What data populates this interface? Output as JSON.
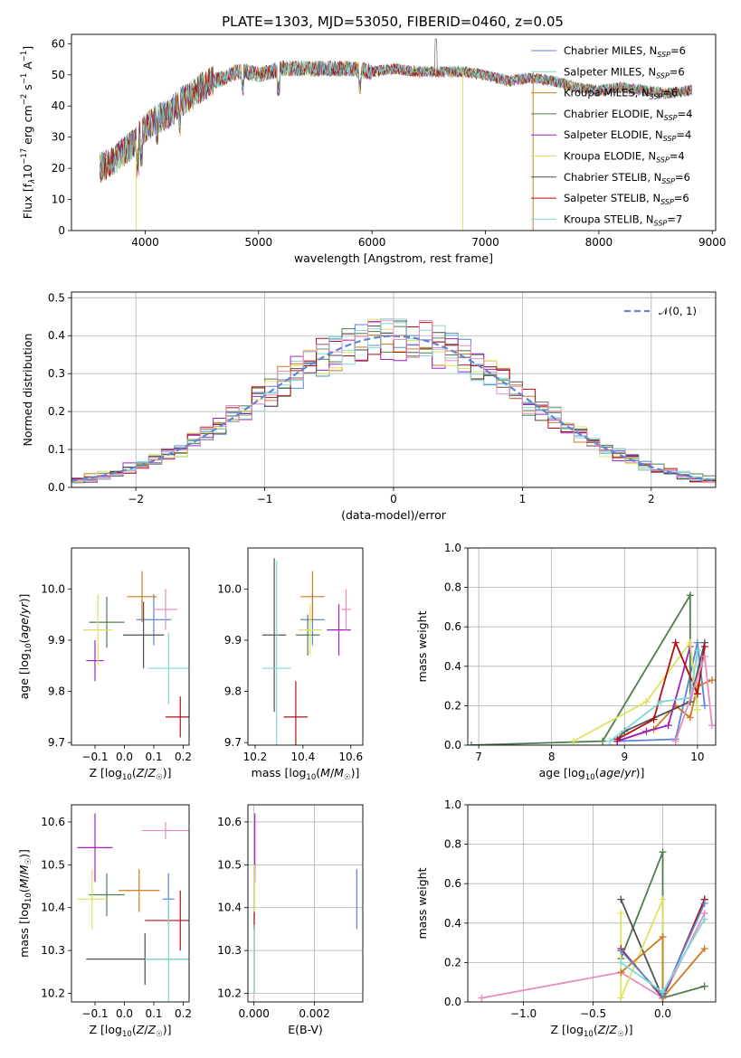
{
  "figure_title": "PLATE=1303, MJD=53050, FIBERID=0460, z=0.05",
  "colors": {
    "chabrier_miles": "#5c85d6",
    "salpeter_miles": "#8dd3c7",
    "kroupa_miles": "#cc7a1f",
    "chabrier_elodie": "#4f7d4f",
    "salpeter_elodie": "#a020c0",
    "kroupa_elodie": "#e0e060",
    "chabrier_stelib": "#505050",
    "salpeter_stelib": "#b01010",
    "kroupa_stelib": "#80d8d8",
    "extra_pink": "#e88bc0",
    "normal_curve": "#5c85d6"
  },
  "chart_data": [
    {
      "id": "spectrum",
      "type": "line",
      "xlabel": "wavelength [Angstrom, rest frame]",
      "ylabel": "Flux [f_λ10^-17 erg cm^-2 s^-1 A^-1]",
      "xlim": [
        3350,
        9030
      ],
      "ylim": [
        0,
        63
      ],
      "xticks": [
        "4000",
        "5000",
        "6000",
        "7000",
        "8000",
        "9000"
      ],
      "yticks": [
        "0",
        "10",
        "20",
        "30",
        "40",
        "50",
        "60"
      ],
      "legend_position": "upper-right",
      "legend": [
        {
          "name": "Chabrier MILES, N_SSP=6",
          "color": "#5c85d6"
        },
        {
          "name": "Salpeter MILES, N_SSP=6",
          "color": "#8dd3c7"
        },
        {
          "name": "Kroupa MILES, N_SSP=6",
          "color": "#cc7a1f"
        },
        {
          "name": "Chabrier ELODIE, N_SSP=4",
          "color": "#4f7d4f"
        },
        {
          "name": "Salpeter ELODIE, N_SSP=4",
          "color": "#a020c0"
        },
        {
          "name": "Kroupa ELODIE, N_SSP=4",
          "color": "#e0e060"
        },
        {
          "name": "Chabrier STELIB, N_SSP=6",
          "color": "#505050"
        },
        {
          "name": "Salpeter STELIB, N_SSP=6",
          "color": "#b01010"
        },
        {
          "name": "Kroupa STELIB, N_SSP=7",
          "color": "#80d8d8"
        }
      ],
      "continuum": {
        "x": [
          3600,
          3700,
          3800,
          3900,
          4000,
          4100,
          4200,
          4300,
          4400,
          4500,
          4600,
          4700,
          4800,
          4900,
          5000,
          5200,
          5400,
          5600,
          5800,
          6000,
          6200,
          6400,
          6600,
          6800,
          7000,
          7200,
          7400,
          7600,
          7800,
          8000,
          8200,
          8400,
          8600,
          8800
        ],
        "y": [
          20,
          22,
          25,
          28,
          33,
          36,
          37,
          41,
          43,
          46,
          48,
          49,
          51,
          51,
          50,
          52,
          52,
          52,
          52,
          51,
          52,
          51,
          51,
          51,
          50,
          48,
          49,
          48,
          46,
          45,
          46,
          45,
          44,
          45
        ]
      }
    },
    {
      "id": "residuals",
      "type": "histogram",
      "xlabel": "(data-model)/error",
      "ylabel": "Normed distribution",
      "xlim": [
        -2.5,
        2.5
      ],
      "ylim": [
        0,
        0.515
      ],
      "xticks": [
        "−2",
        "−1",
        "0",
        "1",
        "2"
      ],
      "yticks": [
        "0.0",
        "0.1",
        "0.2",
        "0.3",
        "0.4",
        "0.5"
      ],
      "legend": "𝒩(0, 1)",
      "legend_position": "upper-right",
      "bin_width": 0.1,
      "bins_from": -2.5
    },
    {
      "id": "age_vs_z",
      "type": "errorbar",
      "xlabel": "Z [log10(Z/Z☉)]",
      "ylabel": "age  [log10(age/yr)]",
      "xlim": [
        -0.18,
        0.22
      ],
      "ylim": [
        9.695,
        10.08
      ],
      "xticks": [
        "−0.1",
        "0.0",
        "0.1",
        "0.2"
      ],
      "yticks": [
        "9.7",
        "9.8",
        "9.9",
        "10.0"
      ],
      "points": [
        {
          "color": "#5c85d6",
          "x": 0.1,
          "xerr": 0.06,
          "y": 9.94,
          "yerr": 0.05
        },
        {
          "color": "#cc7a1f",
          "x": 0.06,
          "xerr": 0.05,
          "y": 9.985,
          "yerr": 0.05
        },
        {
          "color": "#4f7d4f",
          "x": -0.06,
          "xerr": 0.06,
          "y": 9.935,
          "yerr": 0.05
        },
        {
          "color": "#a020c0",
          "x": -0.1,
          "xerr": 0.03,
          "y": 9.86,
          "yerr": 0.04
        },
        {
          "color": "#e0e060",
          "x": -0.09,
          "xerr": 0.05,
          "y": 9.92,
          "yerr": 0.07
        },
        {
          "color": "#505050",
          "x": 0.065,
          "xerr": 0.07,
          "y": 9.91,
          "yerr": 0.065
        },
        {
          "color": "#b01010",
          "x": 0.19,
          "xerr": 0.05,
          "y": 9.75,
          "yerr": 0.04
        },
        {
          "color": "#80d8d8",
          "x": 0.15,
          "xerr": 0.07,
          "y": 9.845,
          "yerr": 0.07
        },
        {
          "color": "#e88bc0",
          "x": 0.14,
          "xerr": 0.04,
          "y": 9.96,
          "yerr": 0.04
        }
      ]
    },
    {
      "id": "age_vs_mass",
      "type": "errorbar",
      "xlabel": "mass [log10(M/M☉)]",
      "xlim": [
        10.17,
        10.65
      ],
      "ylim": [
        9.695,
        10.08
      ],
      "xticks": [
        "10.2",
        "10.4",
        "10.6"
      ],
      "yticks": [
        "9.7",
        "9.8",
        "9.9",
        "10.0"
      ],
      "points": [
        {
          "color": "#5c85d6",
          "x": 10.44,
          "xerr": 0.05,
          "y": 9.94,
          "yerr": 0.05
        },
        {
          "color": "#cc7a1f",
          "x": 10.44,
          "xerr": 0.05,
          "y": 9.985,
          "yerr": 0.05
        },
        {
          "color": "#4f7d4f",
          "x": 10.42,
          "xerr": 0.05,
          "y": 9.91,
          "yerr": 0.04
        },
        {
          "color": "#a020c0",
          "x": 10.55,
          "xerr": 0.05,
          "y": 9.92,
          "yerr": 0.05
        },
        {
          "color": "#e0e060",
          "x": 10.43,
          "xerr": 0.05,
          "y": 9.92,
          "yerr": 0.05
        },
        {
          "color": "#505050",
          "x": 10.28,
          "xerr": 0.05,
          "y": 9.91,
          "yerr": 0.15
        },
        {
          "color": "#b01010",
          "x": 10.37,
          "xerr": 0.05,
          "y": 9.75,
          "yerr": 0.07
        },
        {
          "color": "#80d8d8",
          "x": 10.29,
          "xerr": 0.06,
          "y": 9.845,
          "yerr": 0.21
        },
        {
          "color": "#e88bc0",
          "x": 10.58,
          "xerr": 0.02,
          "y": 9.96,
          "yerr": 0.04
        }
      ]
    },
    {
      "id": "weight_vs_age",
      "type": "line",
      "xlabel": "age  [log10(age/yr)]",
      "ylabel": "mass weight",
      "xlim": [
        6.85,
        10.25
      ],
      "ylim": [
        0,
        1.0
      ],
      "xticks": [
        "7",
        "8",
        "9",
        "10"
      ],
      "yticks": [
        "0.0",
        "0.2",
        "0.4",
        "0.6",
        "0.8",
        "1.0"
      ],
      "series": [
        {
          "color": "#5c85d6",
          "x": [
            8.9,
            9.7,
            10.0,
            10.1
          ],
          "y": [
            0.02,
            0.03,
            0.52,
            0.2
          ]
        },
        {
          "color": "#cc7a1f",
          "x": [
            8.9,
            9.4,
            9.7,
            9.9,
            10.0,
            10.2
          ],
          "y": [
            0.02,
            0.08,
            0.2,
            0.14,
            0.3,
            0.33
          ]
        },
        {
          "color": "#4f7d4f",
          "x": [
            6.9,
            8.7,
            9.9,
            9.9
          ],
          "y": [
            0.0,
            0.02,
            0.76,
            0.22
          ]
        },
        {
          "color": "#a020c0",
          "x": [
            8.9,
            9.3,
            9.6,
            9.9
          ],
          "y": [
            0.02,
            0.07,
            0.1,
            0.5
          ]
        },
        {
          "color": "#e0e060",
          "x": [
            8.3,
            9.3,
            9.9,
            10.0
          ],
          "y": [
            0.02,
            0.22,
            0.52,
            0.18
          ]
        },
        {
          "color": "#505050",
          "x": [
            8.9,
            9.0,
            9.9,
            10.1
          ],
          "y": [
            0.03,
            0.07,
            0.22,
            0.52
          ]
        },
        {
          "color": "#b01010",
          "x": [
            8.9,
            9.4,
            9.7,
            10.0,
            10.1
          ],
          "y": [
            0.03,
            0.13,
            0.52,
            0.26,
            0.5
          ]
        },
        {
          "color": "#80d8d8",
          "x": [
            8.8,
            9.5,
            9.9,
            10.0
          ],
          "y": [
            0.02,
            0.22,
            0.24,
            0.48
          ]
        },
        {
          "color": "#e88bc0",
          "x": [
            9.7,
            10.1,
            10.2
          ],
          "y": [
            0.02,
            0.45,
            0.1
          ]
        }
      ]
    },
    {
      "id": "mass_vs_z",
      "type": "errorbar",
      "xlabel": "Z [log10(Z/Z☉)]",
      "ylabel": "mass [log10(M/M☉)]",
      "xlim": [
        -0.18,
        0.22
      ],
      "ylim": [
        10.18,
        10.64
      ],
      "xticks": [
        "−0.1",
        "0.0",
        "0.1",
        "0.2"
      ],
      "yticks": [
        "10.2",
        "10.3",
        "10.4",
        "10.5",
        "10.6"
      ],
      "points": [
        {
          "color": "#5c85d6",
          "x": 0.15,
          "xerr": 0.02,
          "y": 10.42,
          "yerr": 0.06
        },
        {
          "color": "#cc7a1f",
          "x": 0.05,
          "xerr": 0.07,
          "y": 10.44,
          "yerr": 0.05
        },
        {
          "color": "#4f7d4f",
          "x": -0.06,
          "xerr": 0.06,
          "y": 10.43,
          "yerr": 0.05
        },
        {
          "color": "#a020c0",
          "x": -0.1,
          "xerr": 0.06,
          "y": 10.54,
          "yerr": 0.08
        },
        {
          "color": "#e0e060",
          "x": -0.11,
          "xerr": 0.05,
          "y": 10.42,
          "yerr": 0.07
        },
        {
          "color": "#505050",
          "x": 0.07,
          "xerr": 0.2,
          "y": 10.28,
          "yerr": 0.06
        },
        {
          "color": "#b01010",
          "x": 0.19,
          "xerr": 0.12,
          "y": 10.37,
          "yerr": 0.07
        },
        {
          "color": "#80d8d8",
          "x": 0.15,
          "xerr": 0.08,
          "y": 10.28,
          "yerr": 0.14
        },
        {
          "color": "#e88bc0",
          "x": 0.14,
          "xerr": 0.08,
          "y": 10.58,
          "yerr": 0.02
        }
      ]
    },
    {
      "id": "mass_vs_ebv",
      "type": "errorbar",
      "xlabel": "E(B-V)",
      "xlim": [
        -0.0002,
        0.0036
      ],
      "ylim": [
        10.18,
        10.64
      ],
      "xticks": [
        "0.000",
        "0.002"
      ],
      "yticks": [
        "10.2",
        "10.3",
        "10.4",
        "10.5",
        "10.6"
      ],
      "points": [
        {
          "color": "#5c85d6",
          "x": 0.0034,
          "xerr": 0.0,
          "y": 10.42,
          "yerr": 0.07
        },
        {
          "color": "#a020c0",
          "x": 3e-05,
          "xerr": 0.0,
          "y": 10.54,
          "yerr": 0.08
        },
        {
          "color": "#e0e060",
          "x": 2e-05,
          "xerr": 0.0,
          "y": 10.44,
          "yerr": 0.06
        },
        {
          "color": "#b01010",
          "x": 1e-05,
          "xerr": 0.0,
          "y": 10.37,
          "yerr": 0.02
        },
        {
          "color": "#80d8d8",
          "x": 2e-05,
          "xerr": 0.0,
          "y": 10.28,
          "yerr": 0.08
        }
      ]
    },
    {
      "id": "weight_vs_z",
      "type": "line",
      "xlabel": "Z [log10(Z/Z☉)]",
      "ylabel": "mass weight",
      "xlim": [
        -1.4,
        0.38
      ],
      "ylim": [
        0,
        1.0
      ],
      "xticks": [
        "−1.0",
        "−0.5",
        "0.0"
      ],
      "yticks": [
        "0.0",
        "0.2",
        "0.4",
        "0.6",
        "0.8",
        "1.0"
      ],
      "series": [
        {
          "color": "#e88bc0",
          "x": [
            -1.3,
            -0.3,
            0.0,
            0.3
          ],
          "y": [
            0.02,
            0.15,
            0.02,
            0.45
          ]
        },
        {
          "color": "#4f7d4f",
          "x": [
            -0.3,
            0.0,
            0.0,
            0.3
          ],
          "y": [
            0.22,
            0.76,
            0.02,
            0.08
          ]
        },
        {
          "color": "#505050",
          "x": [
            -0.3,
            0.0,
            0.3
          ],
          "y": [
            0.52,
            0.02,
            0.52
          ]
        },
        {
          "color": "#e0e060",
          "x": [
            -0.3,
            -0.3,
            0.0,
            0.0
          ],
          "y": [
            0.45,
            0.02,
            0.52,
            0.02
          ]
        },
        {
          "color": "#b01010",
          "x": [
            -0.3,
            0.0,
            0.3
          ],
          "y": [
            0.27,
            0.02,
            0.52
          ]
        },
        {
          "color": "#cc7a1f",
          "x": [
            -0.3,
            0.0,
            0.0,
            0.3
          ],
          "y": [
            0.15,
            0.33,
            0.02,
            0.27
          ]
        },
        {
          "color": "#5c85d6",
          "x": [
            -0.3,
            0.0,
            0.3
          ],
          "y": [
            0.26,
            0.03,
            0.5
          ]
        },
        {
          "color": "#80d8d8",
          "x": [
            -0.3,
            0.0,
            0.3
          ],
          "y": [
            0.2,
            0.05,
            0.42
          ]
        }
      ]
    }
  ]
}
